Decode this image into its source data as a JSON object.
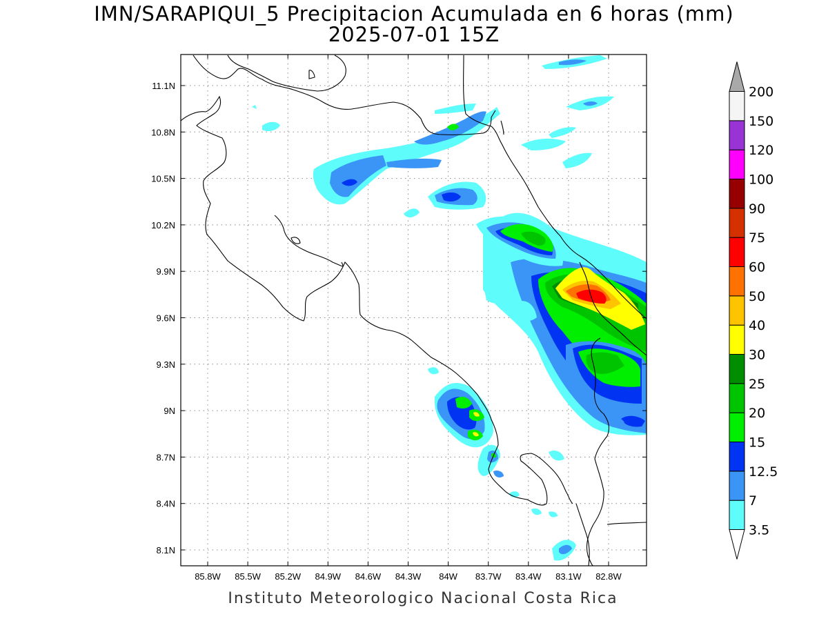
{
  "title": {
    "line1": "IMN/SARAPIQUI_5 Precipitacion Acumulada en 6 horas (mm)",
    "line2": "2025-07-01 15Z"
  },
  "footer": "Instituto Meteorologico Nacional Costa Rica",
  "axes": {
    "lon_ticks": [
      "85.8W",
      "85.5W",
      "85.2W",
      "84.9W",
      "84.6W",
      "84.3W",
      "84W",
      "83.7W",
      "83.4W",
      "83.1W",
      "82.8W"
    ],
    "lat_ticks": [
      "11.1N",
      "10.8N",
      "10.5N",
      "10.2N",
      "9.9N",
      "9.6N",
      "9.3N",
      "9N",
      "8.7N",
      "8.4N",
      "8.1N"
    ],
    "grid": true
  },
  "colorbar": {
    "levels": [
      "3.5",
      "7",
      "12.5",
      "15",
      "20",
      "25",
      "30",
      "40",
      "50",
      "60",
      "75",
      "90",
      "100",
      "120",
      "150",
      "200"
    ],
    "colors": [
      "#5ffcfc",
      "#3a95f6",
      "#0033f2",
      "#00ef00",
      "#00c400",
      "#008d00",
      "#ffff00",
      "#ffc400",
      "#ff7100",
      "#ff0000",
      "#d43000",
      "#960000",
      "#ff00ff",
      "#9a33d6",
      "#f5f5f5"
    ],
    "under_color": "#ffffff",
    "over_color": "#a9a9a9"
  }
}
